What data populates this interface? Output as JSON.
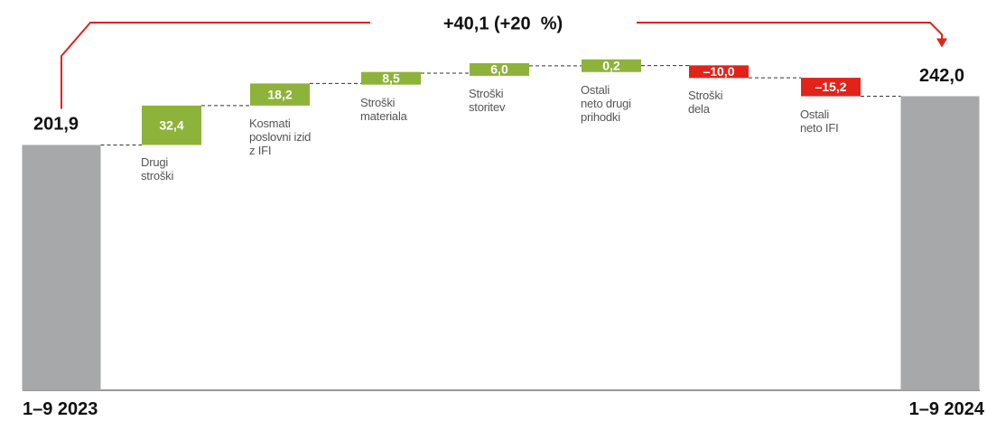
{
  "chart_data": {
    "type": "waterfall",
    "annotation": "+40,1 (+20  %)",
    "categories": [
      "1–9 2023",
      "Drugi\nstroški",
      "Kosmati\nposlovni izid\nz IFI",
      "Stroški\nmateriala",
      "Stroški\nstoritev",
      "Ostali\nneto drugi\nprihodki",
      "Stroški\ndela",
      "Ostali\nneto IFI",
      "1–9 2024"
    ],
    "values": [
      201.9,
      32.4,
      18.2,
      8.5,
      6.0,
      0.2,
      -10.0,
      -15.2,
      242.0
    ],
    "value_labels": [
      "201,9",
      "32,4",
      "18,2",
      "8,5",
      "6,0",
      "0,2",
      "–10,0",
      "–15,2",
      "242,0"
    ],
    "colors": {
      "total": "#a7a8aa",
      "increase": "#8db33a",
      "decrease": "#e2231a",
      "annotation": "#e2231a"
    }
  }
}
